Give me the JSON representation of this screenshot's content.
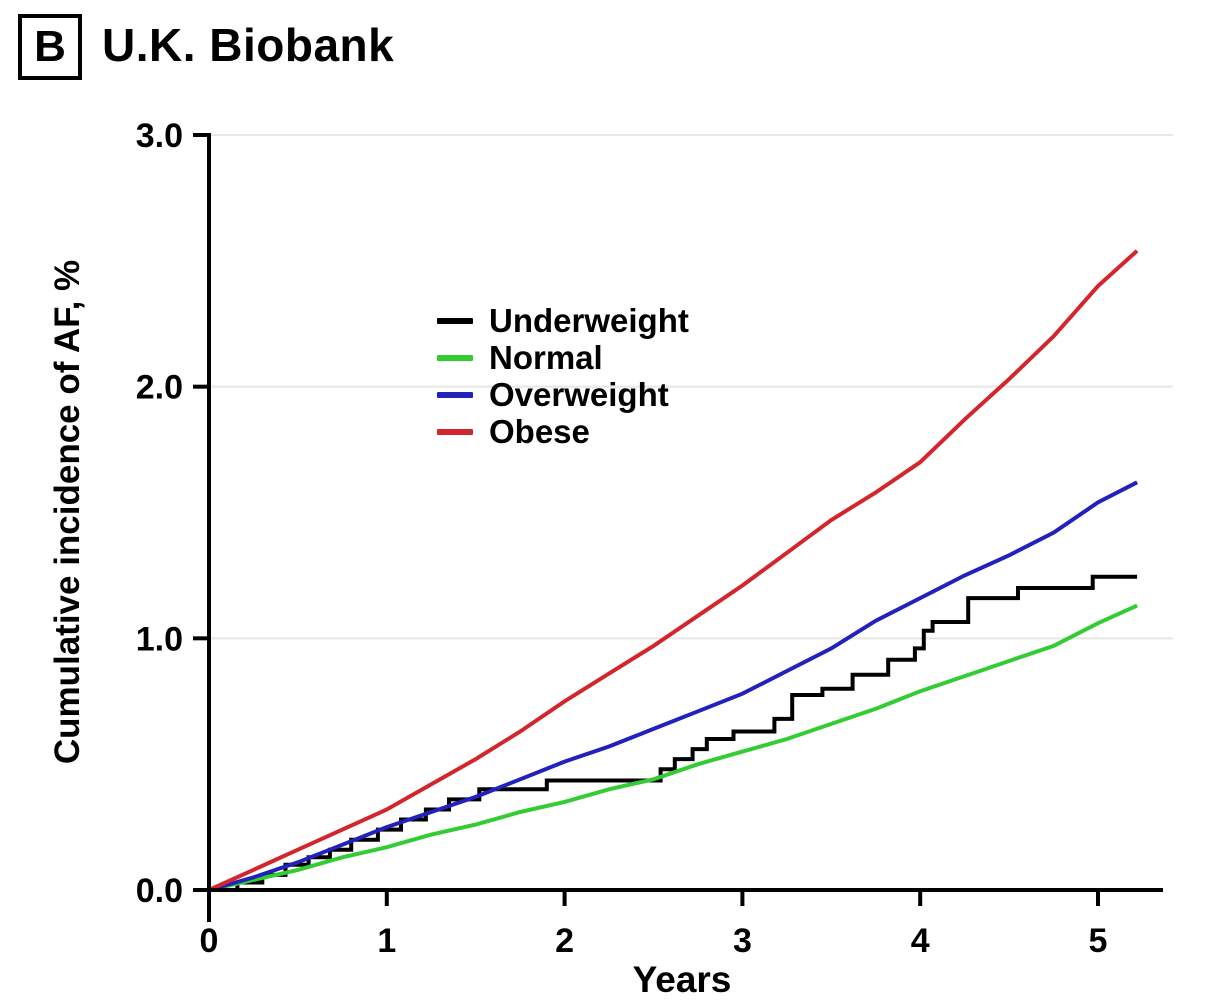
{
  "panel": {
    "label": "B",
    "title": "U.K. Biobank"
  },
  "chart_data": {
    "type": "line",
    "title": "U.K. Biobank",
    "xlabel": "Years",
    "ylabel": "Cumulative incidence of AF, %",
    "xlim": [
      0,
      5.4
    ],
    "ylim": [
      0,
      3.0
    ],
    "xticks": [
      0,
      1,
      2,
      3,
      4,
      5
    ],
    "xtick_labels": [
      "0",
      "1",
      "2",
      "3",
      "4",
      "5"
    ],
    "yticks": [
      0,
      1,
      2,
      3
    ],
    "ytick_labels": [
      "0.0",
      "1.0",
      "2.0",
      "3.0"
    ],
    "grid": "horizontal gridlines at 1.0, 2.0, 3.0",
    "gridline_color": "#e7e7e7",
    "axis_color": "#000000",
    "legend_position": "inside plot, upper center-left",
    "end_x": 5.22,
    "series": [
      {
        "name": "Underweight",
        "color": "#000000",
        "style": "step",
        "x": [
          0,
          0.16,
          0.3,
          0.43,
          0.56,
          0.68,
          0.8,
          0.95,
          1.08,
          1.22,
          1.35,
          1.52,
          1.9,
          2.54,
          2.62,
          2.72,
          2.8,
          2.95,
          3.18,
          3.28,
          3.45,
          3.62,
          3.82,
          3.97,
          4.02,
          4.07,
          4.27,
          4.55,
          4.97
        ],
        "y": [
          0,
          0.03,
          0.06,
          0.1,
          0.13,
          0.16,
          0.2,
          0.24,
          0.28,
          0.32,
          0.36,
          0.4,
          0.435,
          0.48,
          0.52,
          0.56,
          0.6,
          0.63,
          0.68,
          0.775,
          0.8,
          0.855,
          0.915,
          0.96,
          1.03,
          1.065,
          1.16,
          1.2,
          1.245
        ]
      },
      {
        "name": "Normal",
        "color": "#33cc33",
        "style": "line",
        "x": [
          0,
          0.25,
          0.5,
          0.75,
          1,
          1.25,
          1.5,
          1.75,
          2,
          2.25,
          2.5,
          2.75,
          3,
          3.25,
          3.5,
          3.75,
          4,
          4.25,
          4.5,
          4.75,
          5,
          5.22
        ],
        "y": [
          0,
          0.04,
          0.08,
          0.13,
          0.17,
          0.22,
          0.26,
          0.31,
          0.35,
          0.4,
          0.44,
          0.5,
          0.55,
          0.6,
          0.66,
          0.72,
          0.79,
          0.85,
          0.91,
          0.97,
          1.06,
          1.13
        ]
      },
      {
        "name": "Overweight",
        "color": "#2222bb",
        "style": "line",
        "x": [
          0,
          0.25,
          0.5,
          0.75,
          1,
          1.25,
          1.5,
          1.75,
          2,
          2.25,
          2.5,
          2.75,
          3,
          3.25,
          3.5,
          3.75,
          4,
          4.25,
          4.5,
          4.75,
          5,
          5.22
        ],
        "y": [
          0,
          0.05,
          0.11,
          0.18,
          0.25,
          0.31,
          0.37,
          0.44,
          0.51,
          0.57,
          0.64,
          0.71,
          0.78,
          0.87,
          0.96,
          1.07,
          1.16,
          1.25,
          1.33,
          1.42,
          1.54,
          1.62
        ]
      },
      {
        "name": "Obese",
        "color": "#d2262c",
        "style": "line",
        "x": [
          0,
          0.25,
          0.5,
          0.75,
          1,
          1.25,
          1.5,
          1.75,
          2,
          2.25,
          2.5,
          2.75,
          3,
          3.25,
          3.5,
          3.75,
          4,
          4.25,
          4.5,
          4.75,
          5,
          5.22
        ],
        "y": [
          0,
          0.08,
          0.16,
          0.24,
          0.32,
          0.42,
          0.52,
          0.63,
          0.75,
          0.86,
          0.97,
          1.09,
          1.21,
          1.34,
          1.47,
          1.58,
          1.7,
          1.87,
          2.03,
          2.2,
          2.4,
          2.54
        ]
      }
    ]
  }
}
